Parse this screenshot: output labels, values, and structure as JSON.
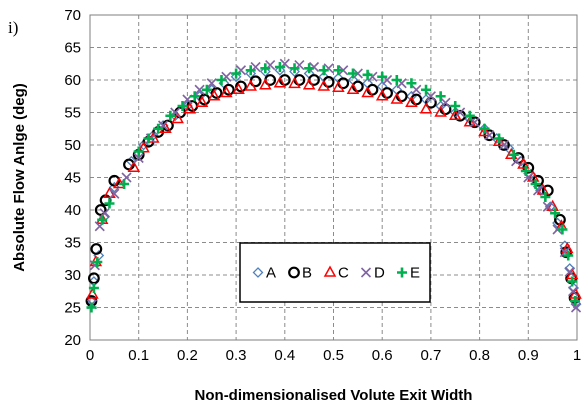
{
  "chart_data": {
    "type": "scatter",
    "panel_label": "i)",
    "xlabel": "Non-dimensionalised Volute Exit Width",
    "ylabel": "Absolute Flow Anlge (deg)",
    "xlim": [
      0,
      1
    ],
    "ylim": [
      20,
      70
    ],
    "xticks": [
      0,
      0.1,
      0.2,
      0.3,
      0.4,
      0.5,
      0.6,
      0.7,
      0.8,
      0.9,
      1
    ],
    "xtick_labels": [
      "0",
      "0.1",
      "0.2",
      "0.3",
      "0.4",
      "0.5",
      "0.6",
      "0.7",
      "0.8",
      "0.9",
      "1"
    ],
    "yticks": [
      20,
      25,
      30,
      35,
      40,
      45,
      50,
      55,
      60,
      65,
      70
    ],
    "ytick_labels": [
      "20",
      "25",
      "30",
      "35",
      "40",
      "45",
      "50",
      "55",
      "60",
      "65",
      "70"
    ],
    "grid": "dashed",
    "legend_position": "center-bottom",
    "series": [
      {
        "name": "A",
        "marker": "diamond",
        "color": "#4f81bd",
        "x": [
          0.002,
          0.008,
          0.018,
          0.03,
          0.05,
          0.085,
          0.11,
          0.13,
          0.15,
          0.175,
          0.2,
          0.225,
          0.25,
          0.275,
          0.3,
          0.33,
          0.36,
          0.39,
          0.42,
          0.45,
          0.48,
          0.51,
          0.54,
          0.57,
          0.6,
          0.63,
          0.66,
          0.69,
          0.72,
          0.75,
          0.78,
          0.81,
          0.835,
          0.86,
          0.885,
          0.905,
          0.925,
          0.945,
          0.96,
          0.975,
          0.985,
          0.993,
          0.998
        ],
        "y": [
          26,
          29,
          33,
          39,
          43.5,
          47.5,
          50,
          51.5,
          53,
          54.5,
          56,
          57.5,
          58.5,
          59.5,
          60.5,
          61,
          61.3,
          61.5,
          61.3,
          61,
          60.5,
          60.3,
          60,
          59.5,
          59,
          58.5,
          57.5,
          57,
          56,
          55,
          54,
          52.5,
          51,
          49.5,
          47.5,
          45.5,
          43,
          40.5,
          38,
          34.5,
          31,
          28,
          25.5
        ]
      },
      {
        "name": "B",
        "marker": "circle",
        "color": "#000000",
        "x": [
          0.003,
          0.008,
          0.013,
          0.022,
          0.032,
          0.05,
          0.08,
          0.1,
          0.12,
          0.14,
          0.16,
          0.185,
          0.21,
          0.235,
          0.26,
          0.285,
          0.31,
          0.34,
          0.37,
          0.4,
          0.43,
          0.46,
          0.49,
          0.52,
          0.55,
          0.58,
          0.61,
          0.64,
          0.67,
          0.7,
          0.73,
          0.76,
          0.79,
          0.82,
          0.85,
          0.88,
          0.9,
          0.92,
          0.94,
          0.965,
          0.978,
          0.988,
          0.995
        ],
        "y": [
          26,
          29.5,
          34,
          40,
          41.5,
          44.5,
          47,
          48.5,
          50.5,
          52,
          53,
          55,
          56,
          57,
          58,
          58.5,
          59,
          59.8,
          60,
          60,
          60,
          60,
          59.7,
          59.5,
          59,
          58.5,
          58,
          57.5,
          57,
          56.5,
          55.5,
          54.5,
          53.5,
          51.5,
          50,
          48,
          46.5,
          44.5,
          43,
          38.5,
          33.5,
          29.5,
          26.5
        ]
      },
      {
        "name": "C",
        "marker": "triangle",
        "color": "#ff0000",
        "x": [
          0.005,
          0.012,
          0.025,
          0.04,
          0.06,
          0.09,
          0.11,
          0.13,
          0.155,
          0.18,
          0.205,
          0.23,
          0.255,
          0.28,
          0.305,
          0.33,
          0.36,
          0.39,
          0.42,
          0.45,
          0.48,
          0.51,
          0.54,
          0.57,
          0.6,
          0.63,
          0.66,
          0.69,
          0.72,
          0.75,
          0.78,
          0.81,
          0.84,
          0.865,
          0.89,
          0.91,
          0.93,
          0.95,
          0.968,
          0.98,
          0.99,
          0.997
        ],
        "y": [
          27,
          32,
          38.5,
          42.5,
          44,
          46.5,
          49.5,
          51,
          52.5,
          54,
          55.5,
          56.5,
          57.5,
          58,
          58.5,
          59,
          59.2,
          59.5,
          59.4,
          59.2,
          59,
          58.8,
          58.5,
          58,
          57.5,
          57,
          56.5,
          55.5,
          55,
          54.5,
          53.5,
          52,
          50.5,
          48.5,
          47,
          45,
          43,
          40.5,
          37.5,
          34,
          30,
          27
        ]
      },
      {
        "name": "D",
        "marker": "x",
        "color": "#8064a2",
        "x": [
          0.004,
          0.01,
          0.02,
          0.03,
          0.05,
          0.075,
          0.1,
          0.125,
          0.15,
          0.175,
          0.2,
          0.225,
          0.25,
          0.28,
          0.31,
          0.34,
          0.37,
          0.4,
          0.43,
          0.46,
          0.49,
          0.52,
          0.55,
          0.58,
          0.61,
          0.64,
          0.67,
          0.7,
          0.73,
          0.76,
          0.79,
          0.82,
          0.85,
          0.875,
          0.9,
          0.92,
          0.94,
          0.96,
          0.975,
          0.985,
          0.992,
          0.998
        ],
        "y": [
          25.5,
          31.5,
          37.5,
          39.5,
          42.5,
          45,
          48,
          51,
          53,
          55,
          57,
          58.5,
          59.5,
          60.5,
          61.5,
          62,
          62.3,
          62.5,
          62.3,
          62,
          61.8,
          61.5,
          61,
          60.5,
          60,
          59.5,
          58.5,
          57.5,
          56.5,
          55,
          53.5,
          51.5,
          50,
          47.5,
          45,
          43,
          40.5,
          37,
          33.5,
          30.5,
          27.5,
          25
        ]
      },
      {
        "name": "E",
        "marker": "plus",
        "color": "#00b050",
        "x": [
          0.003,
          0.008,
          0.015,
          0.025,
          0.04,
          0.07,
          0.1,
          0.12,
          0.14,
          0.165,
          0.19,
          0.215,
          0.24,
          0.27,
          0.3,
          0.33,
          0.36,
          0.39,
          0.42,
          0.45,
          0.48,
          0.51,
          0.54,
          0.57,
          0.6,
          0.63,
          0.66,
          0.69,
          0.72,
          0.75,
          0.78,
          0.81,
          0.84,
          0.87,
          0.895,
          0.915,
          0.935,
          0.955,
          0.97,
          0.982,
          0.99,
          0.996
        ],
        "y": [
          25,
          28,
          32,
          38.5,
          41,
          44,
          49,
          51,
          52.5,
          54.5,
          56,
          57.5,
          58.5,
          60,
          61,
          61.5,
          61.8,
          62,
          61.8,
          61.8,
          61.5,
          61.5,
          61,
          60.8,
          60.5,
          60,
          59.5,
          58.5,
          57.5,
          56,
          54.5,
          52.5,
          51,
          48.5,
          46,
          44,
          42,
          39.5,
          37,
          33,
          29,
          26
        ]
      }
    ]
  }
}
